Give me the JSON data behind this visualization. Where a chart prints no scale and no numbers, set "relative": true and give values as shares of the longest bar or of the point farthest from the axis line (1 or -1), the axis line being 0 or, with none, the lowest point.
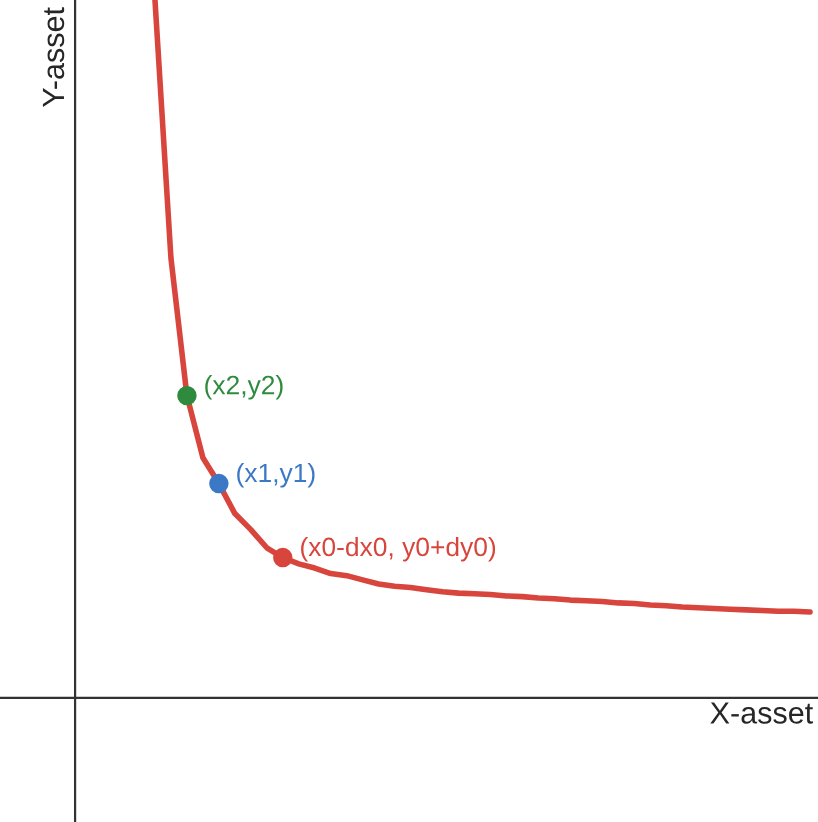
{
  "chart_data": {
    "type": "line",
    "relative": true,
    "xlabel": "X-asset",
    "ylabel": "Y-asset",
    "line_style": "solid",
    "categories": [
      null,
      null,
      null,
      null,
      null,
      null,
      null,
      null,
      null,
      null,
      null,
      null,
      null,
      null,
      null,
      null,
      null,
      null,
      null,
      null,
      null,
      null,
      null,
      null,
      null,
      null,
      null,
      null,
      null,
      null,
      null,
      null,
      null,
      null,
      null,
      null,
      null,
      null,
      null,
      null,
      null,
      null,
      null,
      null,
      null,
      null,
      null
    ],
    "series": [
      {
        "color": "#d8453d",
        "marker": "none",
        "values": [
          null,
          null,
          null,
          null,
          null,
          1.0,
          0.63,
          0.433,
          0.344,
          0.307,
          0.264,
          0.241,
          0.215,
          0.201,
          0.192,
          0.186,
          0.178,
          0.175,
          0.169,
          0.163,
          0.16,
          0.158,
          0.155,
          0.152,
          0.15,
          0.149,
          0.148,
          0.146,
          0.145,
          0.143,
          0.142,
          0.14,
          0.139,
          0.138,
          0.136,
          0.135,
          0.133,
          0.132,
          0.13,
          0.129,
          0.128,
          0.127,
          0.126,
          0.125,
          0.124,
          0.124,
          0.123
        ]
      },
      {
        "name": "(x2,y2)",
        "color": "#2e8b3e",
        "marker": "circle",
        "values": [
          null,
          null,
          null,
          null,
          null,
          null,
          null,
          0.433,
          null,
          null,
          null,
          null,
          null,
          null,
          null,
          null,
          null,
          null,
          null,
          null,
          null,
          null,
          null,
          null,
          null,
          null,
          null,
          null,
          null,
          null,
          null,
          null,
          null,
          null,
          null,
          null,
          null,
          null,
          null,
          null,
          null,
          null,
          null,
          null,
          null,
          null,
          null
        ]
      },
      {
        "name": "(x1,y1)",
        "color": "#3b78c6",
        "marker": "circle",
        "values": [
          null,
          null,
          null,
          null,
          null,
          null,
          null,
          null,
          null,
          0.307,
          null,
          null,
          null,
          null,
          null,
          null,
          null,
          null,
          null,
          null,
          null,
          null,
          null,
          null,
          null,
          null,
          null,
          null,
          null,
          null,
          null,
          null,
          null,
          null,
          null,
          null,
          null,
          null,
          null,
          null,
          null,
          null,
          null,
          null,
          null,
          null,
          null
        ]
      },
      {
        "name": "(x0-dx0, y0+dy0)",
        "color": "#d8453d",
        "marker": "circle",
        "values": [
          null,
          null,
          null,
          null,
          null,
          null,
          null,
          null,
          null,
          null,
          null,
          null,
          null,
          0.201,
          null,
          null,
          null,
          null,
          null,
          null,
          null,
          null,
          null,
          null,
          null,
          null,
          null,
          null,
          null,
          null,
          null,
          null,
          null,
          null,
          null,
          null,
          null,
          null,
          null,
          null,
          null,
          null,
          null,
          null,
          null,
          null,
          null
        ]
      }
    ]
  }
}
